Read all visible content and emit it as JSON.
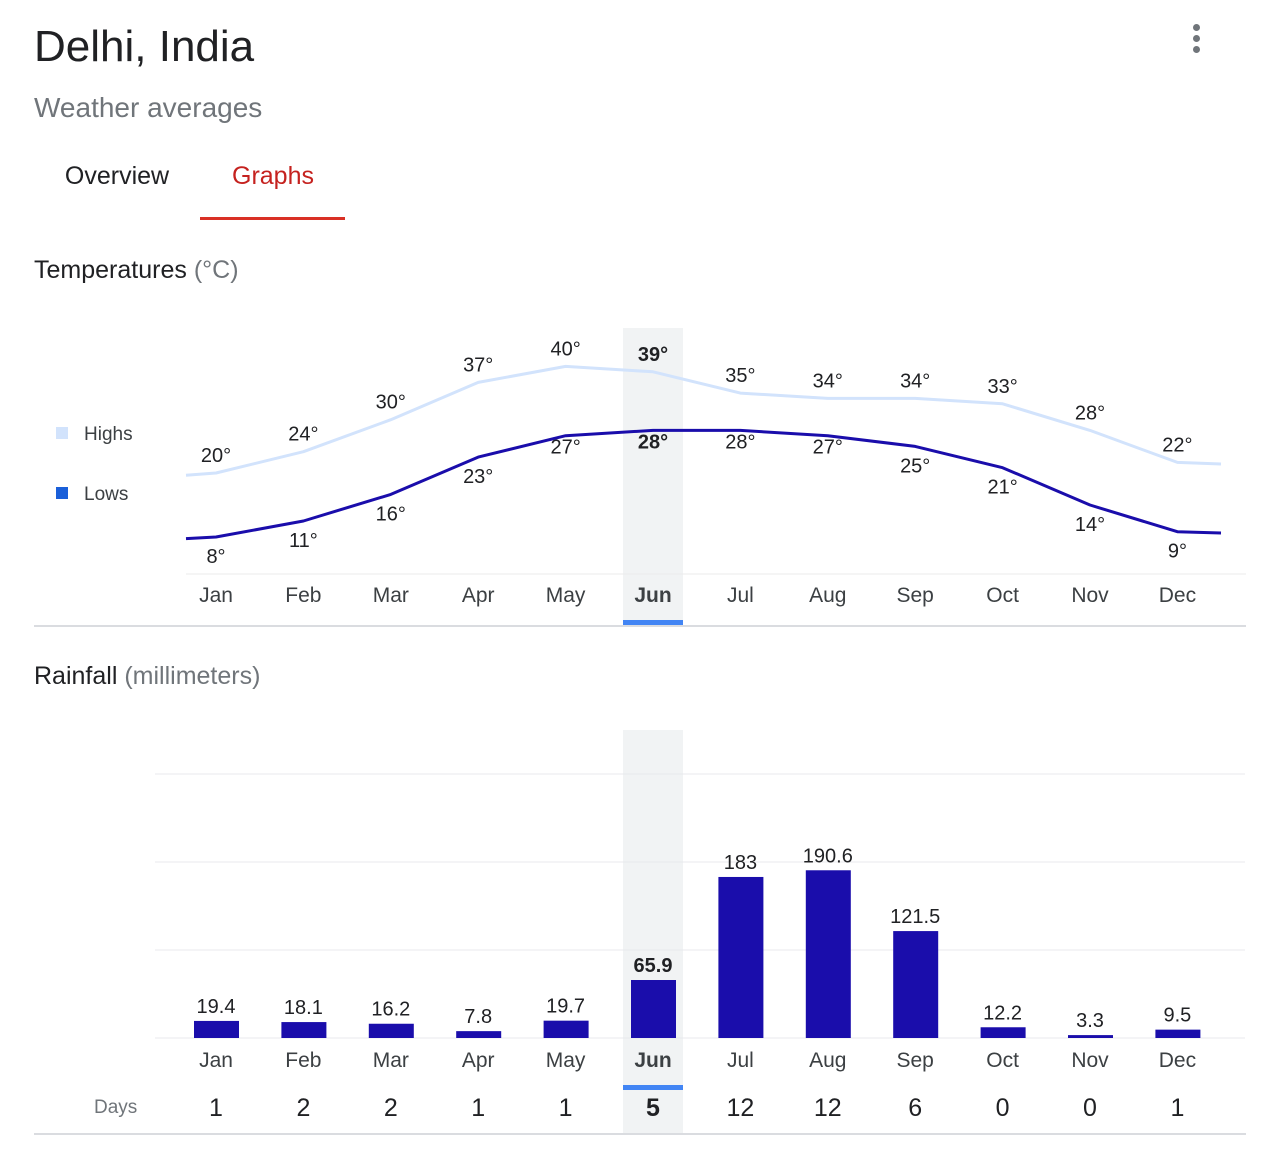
{
  "header": {
    "title": "Delhi, India",
    "subtitle": "Weather averages",
    "more_icon": "more-vert-icon"
  },
  "tabs": [
    {
      "label": "Overview",
      "selected": false
    },
    {
      "label": "Graphs",
      "selected": true
    }
  ],
  "colors": {
    "accent_red": "#d93025",
    "highs_line": "#d2e3fc",
    "lows_line": "#1a0dab",
    "bar": "#1a0dab",
    "selected_marker": "#4285f4",
    "selection_band": "#f1f3f4"
  },
  "temperature": {
    "title": "Temperatures",
    "unit": "(°C)",
    "legend": {
      "highs": "Highs",
      "lows": "Lows"
    }
  },
  "rainfall": {
    "title": "Rainfall",
    "unit": "(millimeters)",
    "days_label": "Days"
  },
  "selected_month": "Jun",
  "chart_data": [
    {
      "type": "line",
      "title": "Temperatures (°C)",
      "categories": [
        "Jan",
        "Feb",
        "Mar",
        "Apr",
        "May",
        "Jun",
        "Jul",
        "Aug",
        "Sep",
        "Oct",
        "Nov",
        "Dec"
      ],
      "series": [
        {
          "name": "Highs",
          "values": [
            20,
            24,
            30,
            37,
            40,
            39,
            35,
            34,
            34,
            33,
            28,
            22
          ]
        },
        {
          "name": "Lows",
          "values": [
            8,
            11,
            16,
            23,
            27,
            28,
            28,
            27,
            25,
            21,
            14,
            9
          ]
        }
      ],
      "value_suffix": "°",
      "legend_position": "left"
    },
    {
      "type": "bar",
      "title": "Rainfall (millimeters)",
      "categories": [
        "Jan",
        "Feb",
        "Mar",
        "Apr",
        "May",
        "Jun",
        "Jul",
        "Aug",
        "Sep",
        "Oct",
        "Nov",
        "Dec"
      ],
      "values": [
        19.4,
        18.1,
        16.2,
        7.8,
        19.7,
        65.9,
        183,
        190.6,
        121.5,
        12.2,
        3.3,
        9.5
      ],
      "labels": [
        "19.4",
        "18.1",
        "16.2",
        "7.8",
        "19.7",
        "65.9",
        "183",
        "190.6",
        "121.5",
        "12.2",
        "3.3",
        "9.5"
      ],
      "days": [
        1,
        2,
        2,
        1,
        1,
        5,
        12,
        12,
        6,
        0,
        0,
        1
      ],
      "ylim": [
        0,
        300
      ],
      "grid": true
    }
  ]
}
